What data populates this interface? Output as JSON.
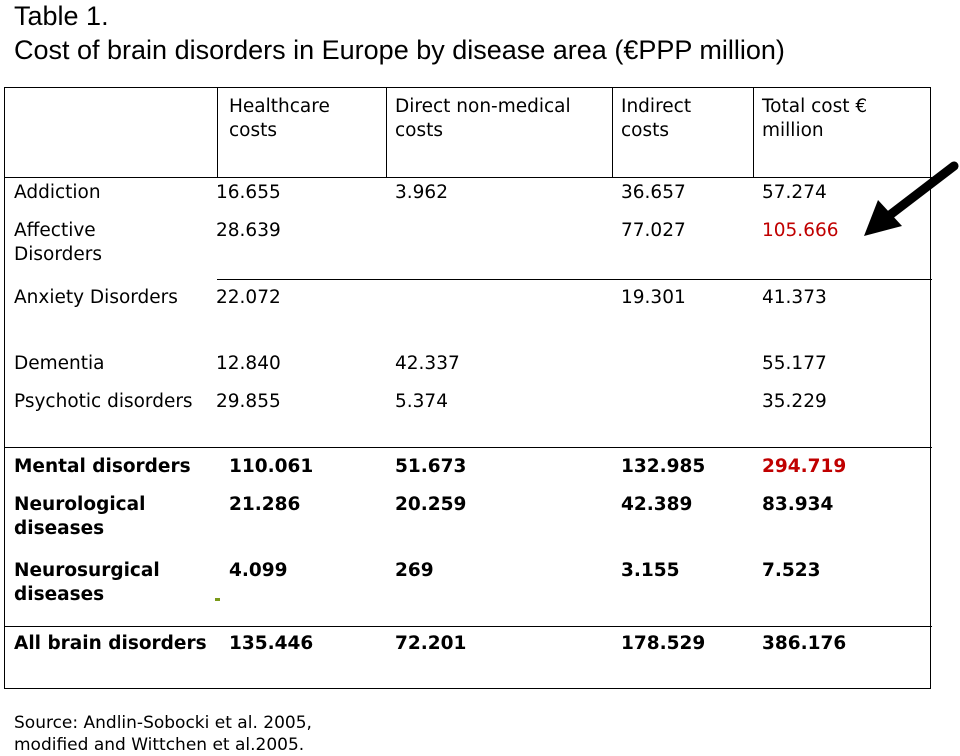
{
  "title": {
    "line1": "Table 1.",
    "line2": "Cost of brain disorders in Europe by disease area (€PPP million)"
  },
  "headers": [
    [
      "Healthcare",
      "costs"
    ],
    [
      "Direct non-medical",
      "costs"
    ],
    [
      "Indirect",
      "costs"
    ],
    [
      "Total cost €",
      "million"
    ]
  ],
  "rows": [
    {
      "name": [
        "Addiction"
      ],
      "cells": [
        "16.655",
        "3.962",
        "36.657",
        "57.274"
      ]
    },
    {
      "name": [
        "Affective",
        "Disorders"
      ],
      "cells": [
        "28.639",
        "",
        "77.027",
        "105.666"
      ]
    },
    {
      "name": [
        "Anxiety Disorders"
      ],
      "cells": [
        "22.072",
        "",
        "19.301",
        "41.373"
      ]
    },
    {
      "name": [
        "Dementia"
      ],
      "cells": [
        "12.840",
        "42.337",
        "",
        "55.177"
      ]
    },
    {
      "name": [
        "Psychotic disorders"
      ],
      "cells": [
        "29.855",
        "5.374",
        "",
        "35.229"
      ]
    },
    {
      "name": [
        "Mental disorders"
      ],
      "cells": [
        "110.061",
        "51.673",
        "132.985",
        "294.719"
      ]
    },
    {
      "name": [
        "Neurological",
        "diseases"
      ],
      "cells": [
        "21.286",
        "20.259",
        "42.389",
        "83.934"
      ]
    },
    {
      "name": [
        "Neurosurgical",
        "diseases"
      ],
      "cells": [
        "4.099",
        "269",
        "3.155",
        "7.523"
      ]
    },
    {
      "name": [
        "All brain disorders"
      ],
      "cells": [
        "135.446",
        "72.201",
        "178.529",
        "386.176"
      ]
    }
  ],
  "highlight_color": "#c00000",
  "arrow_icon": "arrow-pointing-left-down",
  "source": {
    "line1": "Source: Andlin-Sobocki et al. 2005,",
    "line2": "modified and Wittchen et al.2005."
  }
}
